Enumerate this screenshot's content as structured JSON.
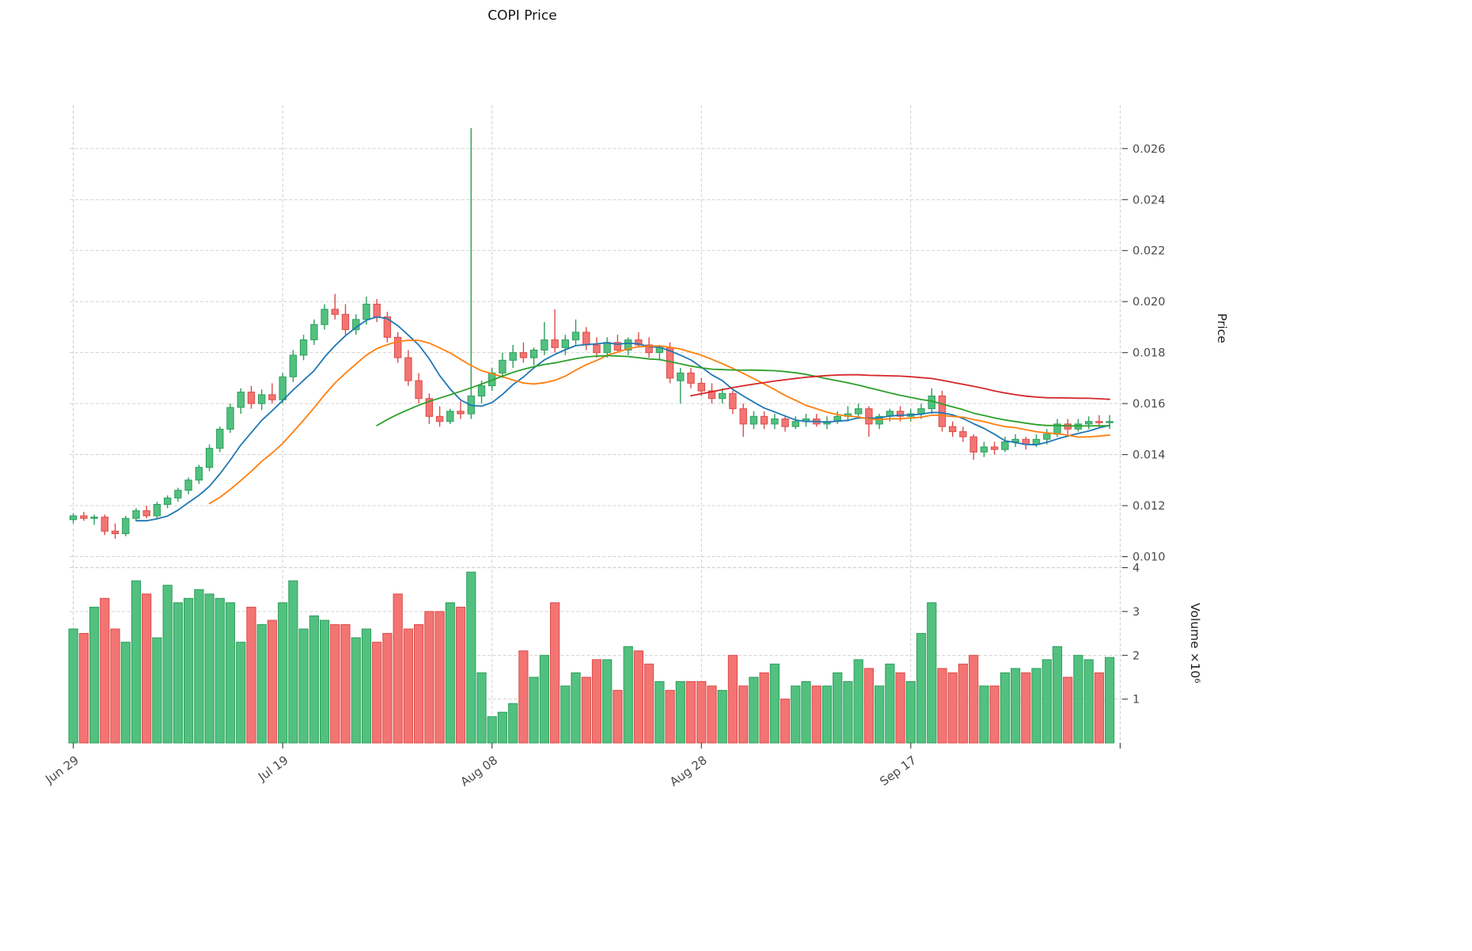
{
  "chart_data": {
    "type": "candlestick",
    "title": "COPI Price",
    "ylabel": "Price",
    "volume_ylabel": "Volume ×10⁶",
    "grid": true,
    "price_ylim": [
      0.0098,
      0.0277
    ],
    "volume_ylim": [
      0,
      4.1
    ],
    "x_domain": [
      -0.35,
      100.2
    ],
    "price_ticks": [
      0.01,
      0.012,
      0.014,
      0.016,
      0.018,
      0.02,
      0.022,
      0.024,
      0.026
    ],
    "volume_ticks": [
      1,
      2,
      3,
      4
    ],
    "x_ticks": [
      {
        "pos": 0,
        "label": "Jun 29"
      },
      {
        "pos": 20,
        "label": "Jul 19"
      },
      {
        "pos": 40,
        "label": "Aug 08"
      },
      {
        "pos": 60,
        "label": "Aug 28"
      },
      {
        "pos": 80,
        "label": "Sep 17"
      },
      {
        "pos": 100,
        "label": ""
      }
    ],
    "colors": {
      "up": "#52c17f",
      "up_edge": "#2d9e5d",
      "down": "#f27573",
      "down_edge": "#dc4b47"
    },
    "moving_averages": [
      {
        "name": "MA7",
        "window": 7,
        "color": "#1f77b4"
      },
      {
        "name": "MA14",
        "window": 14,
        "color": "#ff7f0e"
      },
      {
        "name": "MA30",
        "window": 30,
        "color": "#2ca02c"
      },
      {
        "name": "MA60",
        "window": 60,
        "color": "#d62728"
      }
    ],
    "candles_ohlc": [
      [
        0.01145,
        0.0117,
        0.0113,
        0.0116
      ],
      [
        0.0116,
        0.01175,
        0.0114,
        0.0115
      ],
      [
        0.0115,
        0.01165,
        0.01125,
        0.01155
      ],
      [
        0.01155,
        0.01165,
        0.01085,
        0.011
      ],
      [
        0.011,
        0.0113,
        0.0107,
        0.0109
      ],
      [
        0.0109,
        0.0116,
        0.0108,
        0.0115
      ],
      [
        0.0115,
        0.0119,
        0.0114,
        0.0118
      ],
      [
        0.0118,
        0.012,
        0.0115,
        0.0116
      ],
      [
        0.0116,
        0.01215,
        0.0115,
        0.01205
      ],
      [
        0.01205,
        0.0124,
        0.0119,
        0.0123
      ],
      [
        0.0123,
        0.0127,
        0.01215,
        0.0126
      ],
      [
        0.0126,
        0.0131,
        0.01245,
        0.013
      ],
      [
        0.013,
        0.0136,
        0.01285,
        0.0135
      ],
      [
        0.0135,
        0.0144,
        0.01335,
        0.01425
      ],
      [
        0.01425,
        0.0151,
        0.0141,
        0.015
      ],
      [
        0.015,
        0.016,
        0.01485,
        0.01585
      ],
      [
        0.01585,
        0.0166,
        0.0156,
        0.01645
      ],
      [
        0.01645,
        0.0167,
        0.0158,
        0.016
      ],
      [
        0.016,
        0.01655,
        0.01575,
        0.01635
      ],
      [
        0.01635,
        0.0168,
        0.016,
        0.01615
      ],
      [
        0.01615,
        0.0172,
        0.016,
        0.01705
      ],
      [
        0.01705,
        0.0181,
        0.01685,
        0.0179
      ],
      [
        0.0179,
        0.0187,
        0.0177,
        0.0185
      ],
      [
        0.0185,
        0.0193,
        0.0183,
        0.0191
      ],
      [
        0.0191,
        0.0199,
        0.0189,
        0.0197
      ],
      [
        0.0197,
        0.0203,
        0.0193,
        0.0195
      ],
      [
        0.0195,
        0.0199,
        0.0187,
        0.0189
      ],
      [
        0.0189,
        0.0195,
        0.0187,
        0.0193
      ],
      [
        0.0193,
        0.0202,
        0.0191,
        0.0199
      ],
      [
        0.0199,
        0.0201,
        0.0192,
        0.0194
      ],
      [
        0.0194,
        0.0196,
        0.0184,
        0.0186
      ],
      [
        0.0186,
        0.0188,
        0.0176,
        0.0178
      ],
      [
        0.0178,
        0.0181,
        0.0167,
        0.0169
      ],
      [
        0.0169,
        0.0172,
        0.016,
        0.0162
      ],
      [
        0.0162,
        0.0164,
        0.0152,
        0.0155
      ],
      [
        0.0155,
        0.0159,
        0.0151,
        0.0153
      ],
      [
        0.0153,
        0.0158,
        0.0152,
        0.0157
      ],
      [
        0.0157,
        0.0161,
        0.0154,
        0.0156
      ],
      [
        0.0156,
        0.0268,
        0.0154,
        0.0163
      ],
      [
        0.0163,
        0.0169,
        0.016,
        0.0167
      ],
      [
        0.0167,
        0.0174,
        0.0165,
        0.0172
      ],
      [
        0.0172,
        0.018,
        0.017,
        0.0177
      ],
      [
        0.0177,
        0.0183,
        0.0174,
        0.018
      ],
      [
        0.018,
        0.0184,
        0.0176,
        0.0178
      ],
      [
        0.0178,
        0.0182,
        0.0175,
        0.0181
      ],
      [
        0.0181,
        0.0192,
        0.0179,
        0.0185
      ],
      [
        0.0185,
        0.0197,
        0.018,
        0.0182
      ],
      [
        0.0182,
        0.0187,
        0.0179,
        0.0185
      ],
      [
        0.0185,
        0.0193,
        0.0183,
        0.0188
      ],
      [
        0.0188,
        0.019,
        0.0181,
        0.0183
      ],
      [
        0.0183,
        0.0186,
        0.0178,
        0.018
      ],
      [
        0.018,
        0.0186,
        0.0178,
        0.0184
      ],
      [
        0.0184,
        0.0187,
        0.018,
        0.0181
      ],
      [
        0.0181,
        0.0186,
        0.0179,
        0.0185
      ],
      [
        0.0185,
        0.0188,
        0.0182,
        0.0183
      ],
      [
        0.0183,
        0.0186,
        0.0178,
        0.018
      ],
      [
        0.018,
        0.0183,
        0.0177,
        0.0182
      ],
      [
        0.0182,
        0.0184,
        0.0168,
        0.017
      ],
      [
        0.0169,
        0.0174,
        0.016,
        0.0172
      ],
      [
        0.0172,
        0.0174,
        0.0166,
        0.0168
      ],
      [
        0.0168,
        0.017,
        0.0163,
        0.0165
      ],
      [
        0.0165,
        0.0168,
        0.016,
        0.0162
      ],
      [
        0.0162,
        0.0166,
        0.016,
        0.0164
      ],
      [
        0.0164,
        0.0165,
        0.0156,
        0.0158
      ],
      [
        0.0158,
        0.016,
        0.0147,
        0.0152
      ],
      [
        0.0152,
        0.0157,
        0.015,
        0.0155
      ],
      [
        0.0155,
        0.0157,
        0.015,
        0.0152
      ],
      [
        0.0152,
        0.0156,
        0.015,
        0.0154
      ],
      [
        0.0154,
        0.0155,
        0.0149,
        0.0151
      ],
      [
        0.0151,
        0.0155,
        0.015,
        0.0153
      ],
      [
        0.0153,
        0.0156,
        0.0151,
        0.0154
      ],
      [
        0.0154,
        0.0156,
        0.0151,
        0.0152
      ],
      [
        0.0152,
        0.0155,
        0.015,
        0.0153
      ],
      [
        0.0153,
        0.0157,
        0.0152,
        0.0155
      ],
      [
        0.0155,
        0.0159,
        0.0153,
        0.0156
      ],
      [
        0.0156,
        0.016,
        0.0154,
        0.0158
      ],
      [
        0.0158,
        0.0159,
        0.0147,
        0.0152
      ],
      [
        0.0152,
        0.0156,
        0.015,
        0.0155
      ],
      [
        0.0155,
        0.0158,
        0.0153,
        0.0157
      ],
      [
        0.0157,
        0.0159,
        0.0153,
        0.0155
      ],
      [
        0.0155,
        0.0158,
        0.0153,
        0.0156
      ],
      [
        0.0156,
        0.016,
        0.0154,
        0.0158
      ],
      [
        0.0158,
        0.0166,
        0.0156,
        0.0163
      ],
      [
        0.0163,
        0.0165,
        0.0149,
        0.0151
      ],
      [
        0.0151,
        0.0153,
        0.0147,
        0.0149
      ],
      [
        0.0149,
        0.0151,
        0.0145,
        0.0147
      ],
      [
        0.0147,
        0.0148,
        0.0138,
        0.0141
      ],
      [
        0.0141,
        0.0145,
        0.0139,
        0.0143
      ],
      [
        0.0143,
        0.0145,
        0.014,
        0.0142
      ],
      [
        0.0142,
        0.0147,
        0.0141,
        0.0145
      ],
      [
        0.0145,
        0.0148,
        0.0143,
        0.0146
      ],
      [
        0.0146,
        0.0147,
        0.0142,
        0.0144
      ],
      [
        0.0144,
        0.0148,
        0.0143,
        0.0146
      ],
      [
        0.0146,
        0.015,
        0.0144,
        0.0148
      ],
      [
        0.0148,
        0.0154,
        0.0147,
        0.0152
      ],
      [
        0.0152,
        0.0154,
        0.0148,
        0.015
      ],
      [
        0.015,
        0.0154,
        0.0149,
        0.0152
      ],
      [
        0.0152,
        0.0155,
        0.015,
        0.0153
      ],
      [
        0.0153,
        0.01555,
        0.01505,
        0.01525
      ],
      [
        0.01525,
        0.01555,
        0.015,
        0.0153
      ]
    ],
    "volume_millions": [
      2.6,
      2.5,
      3.1,
      3.3,
      2.6,
      2.3,
      3.7,
      3.4,
      2.4,
      3.6,
      3.2,
      3.3,
      3.5,
      3.4,
      3.3,
      3.2,
      2.3,
      3.1,
      2.7,
      2.8,
      3.2,
      3.7,
      2.6,
      2.9,
      2.8,
      2.7,
      2.7,
      2.4,
      2.6,
      2.3,
      2.5,
      3.4,
      2.6,
      2.7,
      3.0,
      3.0,
      3.2,
      3.1,
      3.9,
      1.6,
      0.6,
      0.7,
      0.9,
      2.1,
      1.5,
      2.0,
      3.2,
      1.3,
      1.6,
      1.5,
      1.9,
      1.9,
      1.2,
      2.2,
      2.1,
      1.8,
      1.4,
      1.2,
      1.4,
      1.4,
      1.4,
      1.3,
      1.2,
      2.0,
      1.3,
      1.5,
      1.6,
      1.8,
      1.0,
      1.3,
      1.4,
      1.3,
      1.3,
      1.6,
      1.4,
      1.9,
      1.7,
      1.3,
      1.8,
      1.6,
      1.4,
      2.5,
      3.2,
      1.7,
      1.6,
      1.8,
      2.0,
      1.3,
      1.3,
      1.6,
      1.7,
      1.6,
      1.7,
      1.9,
      2.2,
      1.5,
      2.0,
      1.9,
      1.6,
      1.95
    ]
  }
}
